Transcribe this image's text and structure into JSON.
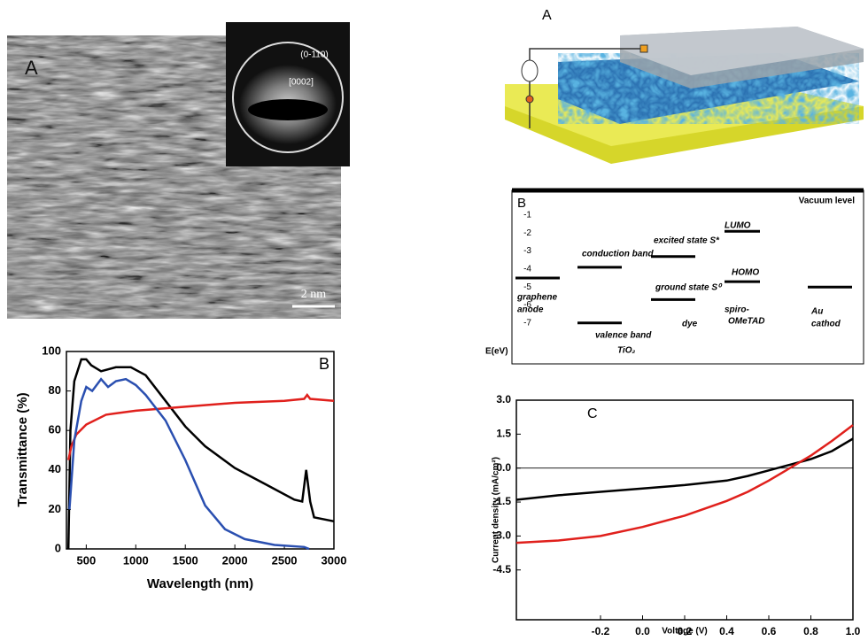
{
  "tem_panel": {
    "label": "A",
    "inset_labels": [
      "(0-110)",
      "[0002]"
    ],
    "scale_bar": "2 nm"
  },
  "device_panel": {
    "label": "A"
  },
  "energy_diagram": {
    "label": "B",
    "top_label": "Vacuum level",
    "axis_label": "E(eV)",
    "yticks": [
      -1,
      -2,
      -3,
      -4,
      -5,
      -6,
      -7
    ],
    "levels": [
      -4.5,
      -3.9,
      -7.0,
      -3.3,
      -5.7,
      -1.9,
      -4.7,
      -5.0
    ],
    "texts": [
      "graphene",
      "anode",
      "conduction band",
      "valence band",
      "TiO₂",
      "excited state S*",
      "ground state S⁰",
      "dye",
      "LUMO",
      "HOMO",
      "spiro-",
      "OMeTAD",
      "Au",
      "cathod"
    ]
  },
  "chart_data": [
    {
      "type": "line",
      "label": "B",
      "x_label": "Wavelength (nm)",
      "y_label": "Transmittance (%)",
      "xlim": [
        300,
        3000
      ],
      "xticks": [
        500,
        1000,
        1500,
        2000,
        2500,
        3000
      ],
      "ylim": [
        0,
        100
      ],
      "yticks": [
        0,
        20,
        40,
        60,
        80,
        100
      ],
      "series": [
        {
          "color": "#000000",
          "x": [
            320,
            340,
            380,
            450,
            500,
            550,
            650,
            800,
            950,
            1100,
            1300,
            1500,
            1700,
            2000,
            2300,
            2600,
            2680,
            2720,
            2760,
            2800,
            3000
          ],
          "values": [
            0,
            60,
            85,
            96,
            96,
            93,
            90,
            92,
            92,
            88,
            75,
            62,
            52,
            41,
            33,
            25,
            24,
            40,
            24,
            16,
            14
          ]
        },
        {
          "color": "#e0201c",
          "x": [
            320,
            350,
            400,
            500,
            700,
            1000,
            1500,
            2000,
            2500,
            2700,
            2730,
            2760,
            3000
          ],
          "values": [
            45,
            52,
            58,
            63,
            68,
            70,
            72,
            74,
            75,
            76,
            78,
            76,
            75
          ]
        },
        {
          "color": "#2a4fb0",
          "x": [
            330,
            380,
            450,
            500,
            560,
            650,
            720,
            800,
            900,
            1000,
            1100,
            1300,
            1500,
            1700,
            1900,
            2100,
            2400,
            2700,
            2750
          ],
          "values": [
            20,
            55,
            75,
            82,
            80,
            86,
            82,
            85,
            86,
            83,
            78,
            65,
            45,
            22,
            10,
            5,
            2,
            1,
            0
          ]
        }
      ]
    },
    {
      "type": "line",
      "label": "C",
      "x_label": "Voltage (V)",
      "y_label": "Current density (mA/cm²)",
      "xlim": [
        -0.6,
        1.0
      ],
      "xticks": [
        -0.2,
        {
          "value": 0,
          "label": "0.0"
        },
        0.2,
        0.4,
        0.6,
        0.8,
        {
          "value": 1,
          "label": "1.0"
        }
      ],
      "ylim": [
        -6.7,
        3
      ],
      "yticks": [
        {
          "value": 3,
          "label": "3.0"
        },
        1.5,
        {
          "value": 0,
          "label": "0.0"
        },
        -1.5,
        {
          "value": -3,
          "label": "-3.0"
        },
        -4.5
      ],
      "series": [
        {
          "color": "#000000",
          "x": [
            -0.6,
            -0.4,
            -0.2,
            0,
            0.2,
            0.4,
            0.5,
            0.6,
            0.7,
            0.8,
            0.9,
            1.0
          ],
          "values": [
            -1.4,
            -1.2,
            -1.05,
            -0.9,
            -0.75,
            -0.55,
            -0.35,
            -0.1,
            0.15,
            0.4,
            0.75,
            1.3
          ]
        },
        {
          "color": "#e0201c",
          "x": [
            -0.6,
            -0.4,
            -0.2,
            0,
            0.2,
            0.4,
            0.5,
            0.6,
            0.7,
            0.8,
            0.9,
            1.0
          ],
          "values": [
            -3.3,
            -3.2,
            -3.0,
            -2.6,
            -2.1,
            -1.45,
            -1.05,
            -0.55,
            0,
            0.55,
            1.2,
            1.9
          ]
        }
      ]
    }
  ]
}
